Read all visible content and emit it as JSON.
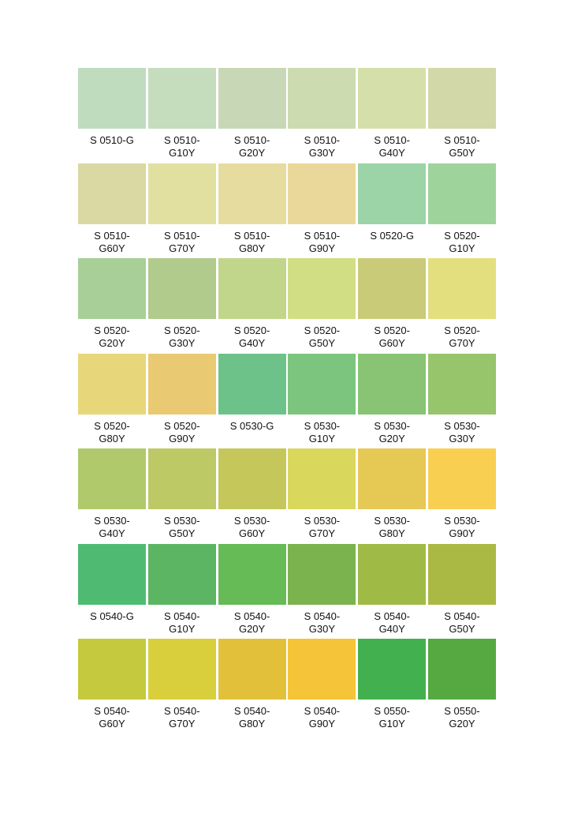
{
  "swatches": [
    {
      "line1": "S 0510-G",
      "line2": "",
      "color": "#bfdcbf"
    },
    {
      "line1": "S 0510-",
      "line2": "G10Y",
      "color": "#c5dcbd"
    },
    {
      "line1": "S 0510-",
      "line2": "G20Y",
      "color": "#c8d8b6"
    },
    {
      "line1": "S 0510-",
      "line2": "G30Y",
      "color": "#ccdbb0"
    },
    {
      "line1": "S 0510-",
      "line2": "G40Y",
      "color": "#d4dfa9"
    },
    {
      "line1": "S 0510-",
      "line2": "G50Y",
      "color": "#d3d8a8"
    },
    {
      "line1": "S 0510-",
      "line2": "G60Y",
      "color": "#dad8a3"
    },
    {
      "line1": "S 0510-",
      "line2": "G70Y",
      "color": "#e1e0a1"
    },
    {
      "line1": "S 0510-",
      "line2": "G80Y",
      "color": "#e6dc9f"
    },
    {
      "line1": "S 0510-",
      "line2": "G90Y",
      "color": "#e9d89a"
    },
    {
      "line1": "S 0520-G",
      "line2": "",
      "color": "#9cd4a7"
    },
    {
      "line1": "S 0520-",
      "line2": "G10Y",
      "color": "#9ed49b"
    },
    {
      "line1": "S 0520-",
      "line2": "G20Y",
      "color": "#a7cf97"
    },
    {
      "line1": "S 0520-",
      "line2": "G30Y",
      "color": "#b0cb8c"
    },
    {
      "line1": "S 0520-",
      "line2": "G40Y",
      "color": "#c1d68a"
    },
    {
      "line1": "S 0520-",
      "line2": "G50Y",
      "color": "#d2de84"
    },
    {
      "line1": "S 0520-",
      "line2": "G60Y",
      "color": "#cacb78"
    },
    {
      "line1": "S 0520-",
      "line2": "G70Y",
      "color": "#e3df7f"
    },
    {
      "line1": "S 0520-",
      "line2": "G80Y",
      "color": "#e8d67a"
    },
    {
      "line1": "S 0520-",
      "line2": "G90Y",
      "color": "#e9ca73"
    },
    {
      "line1": "S 0530-G",
      "line2": "",
      "color": "#6cc288"
    },
    {
      "line1": "S 0530-",
      "line2": "G10Y",
      "color": "#7cc57e"
    },
    {
      "line1": "S 0530-",
      "line2": "G20Y",
      "color": "#88c474"
    },
    {
      "line1": "S 0530-",
      "line2": "G30Y",
      "color": "#96c56b"
    },
    {
      "line1": "S 0530-",
      "line2": "G40Y",
      "color": "#afc96b"
    },
    {
      "line1": "S 0530-",
      "line2": "G50Y",
      "color": "#bdc965"
    },
    {
      "line1": "S 0530-",
      "line2": "G60Y",
      "color": "#c5c75a"
    },
    {
      "line1": "S 0530-",
      "line2": "G70Y",
      "color": "#dad75d"
    },
    {
      "line1": "S 0530-",
      "line2": "G80Y",
      "color": "#e6c855"
    },
    {
      "line1": "S 0530-",
      "line2": "G90Y",
      "color": "#f9cf52"
    },
    {
      "line1": "S 0540-G",
      "line2": "",
      "color": "#4fbb72"
    },
    {
      "line1": "S 0540-",
      "line2": "G10Y",
      "color": "#5cb563"
    },
    {
      "line1": "S 0540-",
      "line2": "G20Y",
      "color": "#66bb57"
    },
    {
      "line1": "S 0540-",
      "line2": "G30Y",
      "color": "#7bb34e"
    },
    {
      "line1": "S 0540-",
      "line2": "G40Y",
      "color": "#9fbb46"
    },
    {
      "line1": "S 0540-",
      "line2": "G50Y",
      "color": "#aab943"
    },
    {
      "line1": "S 0540-",
      "line2": "G60Y",
      "color": "#c5c93d"
    },
    {
      "line1": "S 0540-",
      "line2": "G70Y",
      "color": "#d9cf3c"
    },
    {
      "line1": "S 0540-",
      "line2": "G80Y",
      "color": "#e3c03a"
    },
    {
      "line1": "S 0540-",
      "line2": "G90Y",
      "color": "#f5c438"
    },
    {
      "line1": "S 0550-",
      "line2": "G10Y",
      "color": "#43b04f"
    },
    {
      "line1": "S 0550-",
      "line2": "G20Y",
      "color": "#55a940"
    }
  ]
}
